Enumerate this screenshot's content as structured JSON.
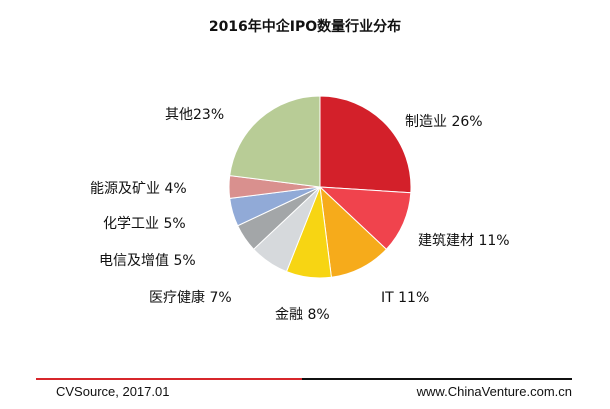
{
  "chart_data": {
    "type": "pie",
    "title": "2016年中企IPO数量行业分布",
    "slices": [
      {
        "category": "制造业",
        "value": 26,
        "label": "制造业 26%",
        "color": "#d3202a"
      },
      {
        "category": "建筑建材",
        "value": 11,
        "label": "建筑建材 11%",
        "color": "#f0434d"
      },
      {
        "category": "IT",
        "value": 11,
        "label": "IT 11%",
        "color": "#f6ab1b"
      },
      {
        "category": "金融",
        "value": 8,
        "label": "金融 8%",
        "color": "#f7d513"
      },
      {
        "category": "医疗健康",
        "value": 7,
        "label": "医疗健康 7%",
        "color": "#d6d9dc"
      },
      {
        "category": "电信及增值",
        "value": 5,
        "label": "电信及增值 5%",
        "color": "#a3a6a8"
      },
      {
        "category": "化学工业",
        "value": 5,
        "label": "化学工业 5%",
        "color": "#91aad7"
      },
      {
        "category": "能源及矿业",
        "value": 4,
        "label": "能源及矿业 4%",
        "color": "#d9908e"
      },
      {
        "category": "其他",
        "value": 23,
        "label": "其他23%",
        "color": "#b8cc96"
      }
    ]
  },
  "footer": {
    "source": "CVSource, 2017.01",
    "website": "www.ChinaVenture.com.cn"
  }
}
